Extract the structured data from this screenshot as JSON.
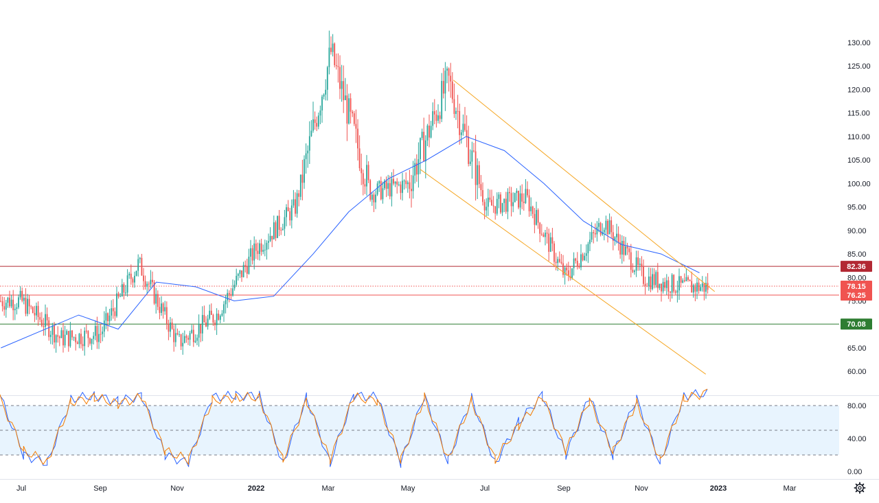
{
  "chart_data": [
    {
      "type": "candlestick",
      "x_tick_labels": [
        "Jul",
        "Sep",
        "Nov",
        "2022",
        "Mar",
        "May",
        "Jul",
        "Sep",
        "Nov",
        "2023",
        "Mar"
      ],
      "y_tick_labels": [
        "130.00",
        "125.00",
        "120.00",
        "115.00",
        "110.00",
        "105.00",
        "100.00",
        "95.00",
        "90.00",
        "85.00",
        "80.00",
        "75.00",
        "70.00",
        "65.00",
        "60.00"
      ],
      "ylim": [
        58.6,
        132.9
      ],
      "series": [
        {
          "kind": "ohlc",
          "note": "approximate monthly swing levels read from the candles",
          "x": [
            "2021-07-01",
            "2021-08-01",
            "2021-09-01",
            "2021-10-01",
            "2021-11-01",
            "2021-12-01",
            "2022-01-01",
            "2022-02-01",
            "2022-03-01",
            "2022-04-01",
            "2022-05-01",
            "2022-06-01",
            "2022-07-01",
            "2022-08-01",
            "2022-09-01",
            "2022-10-01",
            "2022-11-01",
            "2022-12-01"
          ],
          "y": [
            75,
            67,
            68,
            83,
            66,
            72,
            86,
            95,
            128,
            98,
            100,
            122,
            95,
            97,
            80,
            92,
            80,
            78
          ]
        },
        {
          "kind": "moving-average",
          "color": "#2962ff",
          "x": [
            "2021-06-15",
            "2021-08-15",
            "2021-09-15",
            "2021-10-15",
            "2021-11-15",
            "2021-12-15",
            "2022-01-15",
            "2022-02-15",
            "2022-03-15",
            "2022-04-15",
            "2022-05-15",
            "2022-06-15",
            "2022-07-15",
            "2022-08-15",
            "2022-09-15",
            "2022-10-15",
            "2022-11-15",
            "2022-12-15"
          ],
          "y": [
            65,
            72,
            69,
            79,
            78,
            75,
            76,
            85,
            94,
            101,
            105,
            110,
            107,
            100,
            92,
            87,
            85,
            81
          ]
        }
      ],
      "horizontal_levels": [
        {
          "value": 82.36,
          "label": "82.36",
          "color": "#b22833"
        },
        {
          "value": 78.15,
          "label": "78.15",
          "color": "#f05350",
          "style": "dotted"
        },
        {
          "value": 76.25,
          "label": "76.25",
          "color": "#f05350"
        },
        {
          "value": 70.08,
          "label": "70.08",
          "color": "#2e7d32"
        }
      ],
      "trend_channel": {
        "color": "#f5a623",
        "upper": [
          {
            "x": "2022-06-05",
            "y": 122
          },
          {
            "x": "2022-12-27",
            "y": 77
          }
        ],
        "lower": [
          {
            "x": "2022-05-10",
            "y": 103
          },
          {
            "x": "2022-12-20",
            "y": 59.4
          }
        ]
      },
      "grid": false
    },
    {
      "type": "line",
      "indicator": "stochastic",
      "y_tick_labels": [
        "80.00",
        "40.00",
        "0.00"
      ],
      "ylim": [
        0,
        100
      ],
      "levels": [
        80,
        50,
        20
      ],
      "series": [
        {
          "color": "#2962ff",
          "values": [
            92,
            20,
            10,
            88,
            92,
            85,
            92,
            20,
            10,
            90,
            92,
            92,
            10,
            90,
            10,
            92,
            90,
            10,
            92,
            12,
            90,
            10,
            60,
            93,
            20,
            90,
            20,
            88,
            10,
            92,
            95
          ]
        },
        {
          "color": "#f57c00",
          "values": [
            88,
            25,
            12,
            84,
            90,
            82,
            90,
            25,
            14,
            86,
            90,
            90,
            14,
            86,
            14,
            90,
            86,
            14,
            90,
            16,
            86,
            14,
            56,
            90,
            25,
            86,
            24,
            84,
            14,
            88,
            96
          ]
        }
      ]
    }
  ],
  "price_labels": [
    "82.36",
    "78.15",
    "76.25",
    "70.08"
  ],
  "settings_icon": "gear-icon"
}
